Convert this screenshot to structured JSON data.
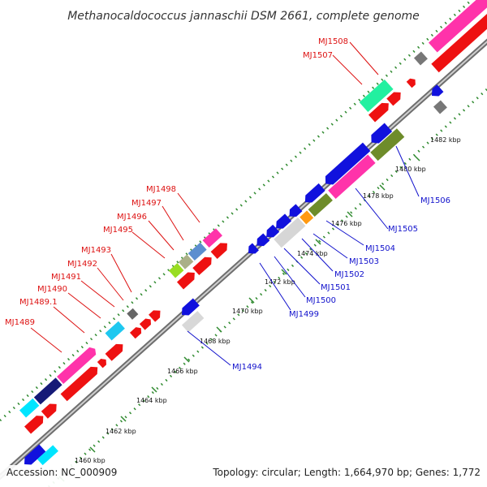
{
  "title": "Methanocaldococcus jannaschii DSM 2661, complete genome",
  "accession": "Accession: NC_000909",
  "topology": "Topology: circular; Length: 1,664,970 bp; Genes: 1,772",
  "colors": {
    "backbone": "#b0b0b0",
    "gc_dots": "#2f8a2f",
    "fwd_label": "#dd1111",
    "rev_label": "#1111cc"
  },
  "ticks": [
    "1460 kbp",
    "1462 kbp",
    "1464 kbp",
    "1466 kbp",
    "1468 kbp",
    "1470 kbp",
    "1472 kbp",
    "1474 kbp",
    "1476 kbp",
    "1478 kbp",
    "1480 kbp",
    "1482 kbp"
  ],
  "gene_labels_forward": [
    "MJ1489",
    "MJ1489.1",
    "MJ1490",
    "MJ1491",
    "MJ1492",
    "MJ1493",
    "MJ1495",
    "MJ1496",
    "MJ1497",
    "MJ1498",
    "MJ1507",
    "MJ1508"
  ],
  "gene_labels_reverse": [
    "MJ1494",
    "MJ1499",
    "MJ1500",
    "MJ1501",
    "MJ1502",
    "MJ1503",
    "MJ1504",
    "MJ1505",
    "MJ1506"
  ]
}
